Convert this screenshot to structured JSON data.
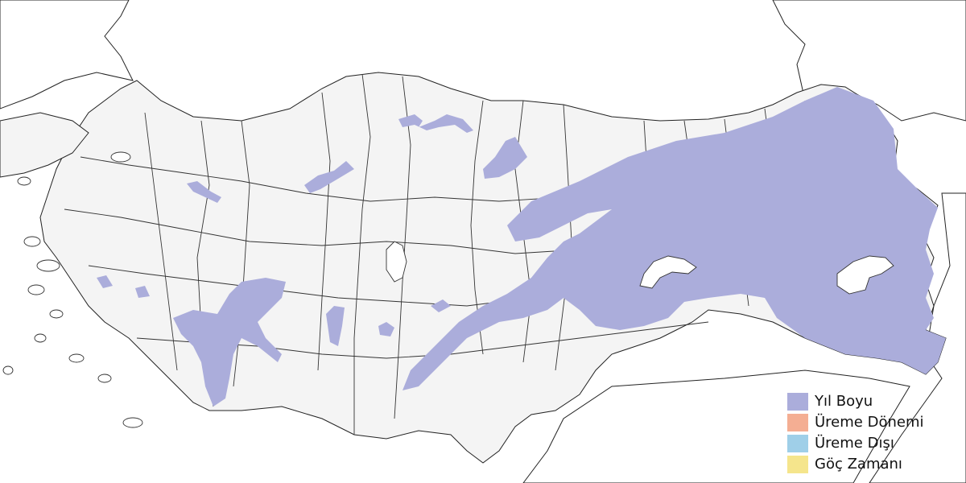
{
  "legend": {
    "items": [
      {
        "label": "Yıl Boyu",
        "color": "#abaddb"
      },
      {
        "label": "Üreme Dönemi",
        "color": "#f4ae93"
      },
      {
        "label": "Üreme Dışı",
        "color": "#9fcfe8"
      },
      {
        "label": "Göç Zamanı",
        "color": "#f5e58c"
      }
    ]
  }
}
